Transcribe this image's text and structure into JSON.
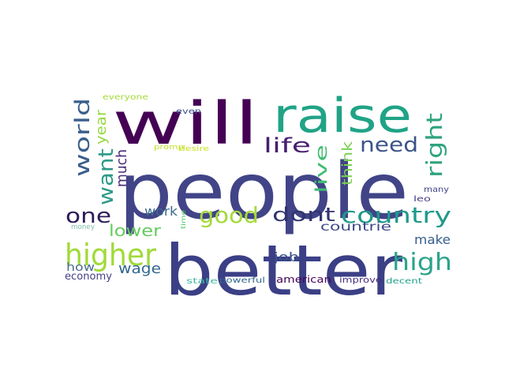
{
  "wordcloud": {
    "words": [
      {
        "text": "people",
        "color": "#414487"
      },
      {
        "text": "better",
        "color": "#3b3f85"
      },
      {
        "text": "will",
        "color": "#440154"
      },
      {
        "text": "raise",
        "color": "#20a386"
      },
      {
        "text": "higher",
        "color": "#a0da39"
      },
      {
        "text": "country",
        "color": "#1f9a8a"
      },
      {
        "text": "high",
        "color": "#2aa48a"
      },
      {
        "text": "life",
        "color": "#481f70"
      },
      {
        "text": "need",
        "color": "#3b528b"
      },
      {
        "text": "right",
        "color": "#2ea37f"
      },
      {
        "text": "good",
        "color": "#a3da37"
      },
      {
        "text": "dont",
        "color": "#30336e"
      },
      {
        "text": "one",
        "color": "#2c1a58"
      },
      {
        "text": "world",
        "color": "#3a5e8c"
      },
      {
        "text": "want",
        "color": "#2d9a87"
      },
      {
        "text": "year",
        "color": "#95d840"
      },
      {
        "text": "much",
        "color": "#472a7a"
      },
      {
        "text": "lower",
        "color": "#65cb5e"
      },
      {
        "text": "live",
        "color": "#3fbc73"
      },
      {
        "text": "wage",
        "color": "#31678e"
      },
      {
        "text": "work",
        "color": "#3d6c8e"
      },
      {
        "text": "job",
        "color": "#3b528b"
      },
      {
        "text": "make",
        "color": "#355e8d"
      },
      {
        "text": "think",
        "color": "#7ad151"
      },
      {
        "text": "countrie",
        "color": "#3e4989"
      },
      {
        "text": "how",
        "color": "#4a6f8f"
      },
      {
        "text": "money",
        "color": "#7fc0a8"
      },
      {
        "text": "economy",
        "color": "#433e85"
      },
      {
        "text": "american",
        "color": "#440154"
      },
      {
        "text": "improve",
        "color": "#472f7d"
      },
      {
        "text": "state",
        "color": "#3db5a0"
      },
      {
        "text": "powerful",
        "color": "#31678e"
      },
      {
        "text": "decent",
        "color": "#1fa187"
      },
      {
        "text": "everyone",
        "color": "#a5db36"
      },
      {
        "text": "even",
        "color": "#3b4f8a"
      },
      {
        "text": "promp",
        "color": "#bddf26"
      },
      {
        "text": "desire",
        "color": "#c8e020"
      },
      {
        "text": "time",
        "color": "#55c667"
      },
      {
        "text": "many",
        "color": "#414487"
      },
      {
        "text": "leo",
        "color": "#433e85"
      }
    ]
  }
}
